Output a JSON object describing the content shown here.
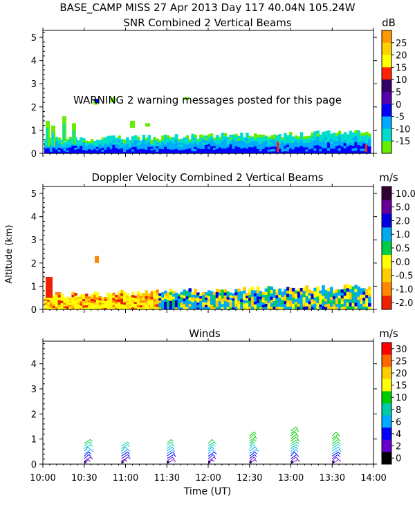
{
  "header": {
    "title": "BASE_CAMP MISS  27 Apr 2013 Day 117 40.04N 105.24W"
  },
  "warning": "WARNING  2 warning messages posted for this page",
  "x_axis": {
    "label": "Time (UT)",
    "ticks": [
      "10:00",
      "10:30",
      "11:00",
      "11:30",
      "12:00",
      "12:30",
      "13:00",
      "13:30",
      "14:00"
    ],
    "range_hours": [
      10.0,
      14.0
    ]
  },
  "y_axis_label": "Altitude (km)",
  "chart_data": [
    {
      "type": "heatmap",
      "title": "SNR Combined 2 Vertical Beams",
      "units": "dB",
      "xlabel": "Time (UT)",
      "ylabel": "Altitude (km)",
      "ylim": [
        0,
        5.3
      ],
      "yticks": [
        "0",
        "1",
        "2",
        "3",
        "4",
        "5"
      ],
      "colorbar": {
        "labels": [
          "25",
          "20",
          "15",
          "10",
          "5",
          "0",
          "-5",
          "-10",
          "-15"
        ],
        "colors": [
          "#ff9900",
          "#ffd000",
          "#ffff00",
          "#ff2200",
          "#330066",
          "#5500aa",
          "#0000ff",
          "#00aaff",
          "#00ddcc",
          "#66ee00"
        ]
      }
    },
    {
      "type": "heatmap",
      "title": "Doppler Velocity Combined 2 Vertical Beams",
      "units": "m/s",
      "xlabel": "Time (UT)",
      "ylabel": "Altitude (km)",
      "ylim": [
        0,
        5.3
      ],
      "yticks": [
        "0",
        "1",
        "2",
        "3",
        "4",
        "5"
      ],
      "colorbar": {
        "labels": [
          "10.0",
          "5.0",
          "2.0",
          "1.0",
          "0.5",
          "0.0",
          "-0.5",
          "-1.0",
          "-2.0"
        ],
        "colors": [
          "#330033",
          "#660099",
          "#0000dd",
          "#00aaee",
          "#00cc44",
          "#ffff00",
          "#ffcc00",
          "#ff8800",
          "#ee2200"
        ]
      }
    },
    {
      "type": "wind_barbs",
      "title": "Winds",
      "units": "m/s",
      "xlabel": "Time (UT)",
      "ylabel": "Altitude (km)",
      "ylim": [
        0,
        4.9
      ],
      "yticks": [
        "0",
        "1",
        "2",
        "3",
        "4"
      ],
      "colorbar": {
        "labels": [
          "30",
          "25",
          "20",
          "15",
          "10",
          "8",
          "6",
          "4",
          "2",
          "0"
        ],
        "colors": [
          "#ff0000",
          "#ff6600",
          "#ffcc00",
          "#ffff00",
          "#00cc00",
          "#00ccaa",
          "#00aaff",
          "#0000ff",
          "#6600cc",
          "#000000"
        ]
      },
      "profiles": [
        {
          "time": 10.4,
          "top_km": 0.9
        },
        {
          "time": 10.85,
          "top_km": 0.8
        },
        {
          "time": 11.4,
          "top_km": 0.9
        },
        {
          "time": 11.9,
          "top_km": 0.9
        },
        {
          "time": 12.4,
          "top_km": 1.2
        },
        {
          "time": 12.9,
          "top_km": 1.4
        },
        {
          "time": 13.4,
          "top_km": 1.2
        }
      ]
    }
  ]
}
